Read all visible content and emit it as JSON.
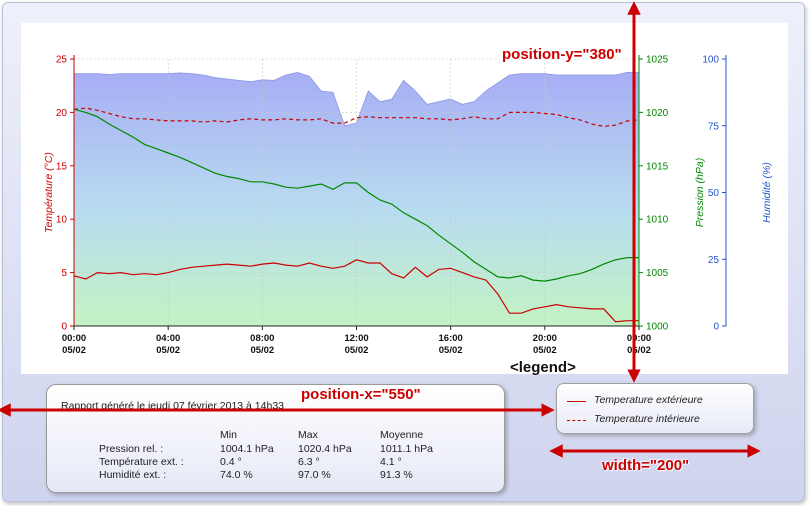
{
  "chart_data": {
    "type": "line",
    "xlabel": "",
    "x_ticks": [
      {
        "time": "00:00",
        "date": "05/02"
      },
      {
        "time": "04:00",
        "date": "05/02"
      },
      {
        "time": "08:00",
        "date": "05/02"
      },
      {
        "time": "12:00",
        "date": "05/02"
      },
      {
        "time": "16:00",
        "date": "05/02"
      },
      {
        "time": "20:00",
        "date": "05/02"
      },
      {
        "time": "00:00",
        "date": "06/02"
      }
    ],
    "xlim": [
      "05/02 00:00",
      "06/02 00:00"
    ],
    "axes": {
      "temperature": {
        "label": "Température (°C)",
        "ylim": [
          0,
          25
        ],
        "ticks": [
          "0",
          "5",
          "10",
          "15",
          "20",
          "25"
        ],
        "color": "#cc0000"
      },
      "pressure": {
        "label": "Pression (hPa)",
        "ylim": [
          1000,
          1025
        ],
        "ticks": [
          "1000",
          "1005",
          "1010",
          "1015",
          "1020",
          "1025"
        ],
        "color": "#008800"
      },
      "humidity": {
        "label": "Humidité (%)",
        "ylim": [
          0,
          100
        ],
        "ticks": [
          "0",
          "25",
          "50",
          "75",
          "100"
        ],
        "color": "#2255cc"
      }
    },
    "x_hours": [
      0,
      0.5,
      1,
      1.5,
      2,
      2.5,
      3,
      3.5,
      4,
      4.5,
      5,
      5.5,
      6,
      6.5,
      7,
      7.5,
      8,
      8.5,
      9,
      9.5,
      10,
      10.5,
      11,
      11.5,
      12,
      12.5,
      13,
      13.5,
      14,
      14.5,
      15,
      15.5,
      16,
      16.5,
      17,
      17.5,
      18,
      18.5,
      19,
      19.5,
      20,
      20.5,
      21,
      21.5,
      22,
      22.5,
      23,
      23.5,
      24
    ],
    "series": [
      {
        "name": "Temperature extérieure",
        "axis": "temperature",
        "style": "solid",
        "color": "#cc0000",
        "values": [
          4.7,
          4.4,
          5.0,
          4.9,
          5.0,
          4.8,
          4.9,
          4.8,
          5.0,
          5.3,
          5.5,
          5.6,
          5.7,
          5.8,
          5.7,
          5.6,
          5.8,
          5.9,
          5.7,
          5.6,
          5.9,
          5.6,
          5.4,
          5.6,
          6.2,
          5.9,
          5.9,
          4.9,
          4.5,
          5.5,
          4.6,
          5.3,
          5.4,
          5.0,
          4.6,
          4.3,
          3.0,
          1.2,
          1.2,
          1.6,
          1.8,
          2.0,
          1.8,
          1.7,
          1.6,
          1.6,
          0.4,
          0.5,
          0.5
        ]
      },
      {
        "name": "Temperature intérieure",
        "axis": "temperature",
        "style": "dashed",
        "color": "#cc0000",
        "values": [
          20.3,
          20.4,
          20.2,
          19.9,
          19.6,
          19.4,
          19.4,
          19.3,
          19.2,
          19.2,
          19.2,
          19.1,
          19.2,
          19.1,
          19.3,
          19.4,
          19.3,
          19.3,
          19.4,
          19.3,
          19.3,
          19.4,
          19.0,
          19.0,
          19.5,
          19.6,
          19.5,
          19.5,
          19.5,
          19.5,
          19.4,
          19.4,
          19.3,
          19.4,
          19.6,
          19.4,
          19.4,
          20.0,
          20.0,
          20.0,
          19.9,
          19.8,
          19.5,
          19.3,
          18.9,
          18.7,
          18.8,
          19.2,
          19.3
        ]
      },
      {
        "name": "Pression rel.",
        "axis": "pressure",
        "style": "solid",
        "color": "#008800",
        "values": [
          1020.3,
          1020.0,
          1019.6,
          1018.9,
          1018.3,
          1017.7,
          1017.0,
          1016.6,
          1016.2,
          1015.8,
          1015.3,
          1014.8,
          1014.3,
          1014.0,
          1013.8,
          1013.5,
          1013.5,
          1013.3,
          1013.0,
          1012.9,
          1013.1,
          1013.3,
          1012.8,
          1013.4,
          1013.4,
          1012.5,
          1011.8,
          1011.4,
          1010.6,
          1010.0,
          1009.4,
          1008.5,
          1007.7,
          1006.9,
          1006.0,
          1005.3,
          1004.6,
          1004.5,
          1004.7,
          1004.3,
          1004.2,
          1004.4,
          1004.7,
          1004.9,
          1005.3,
          1005.8,
          1006.2,
          1006.4,
          1006.4
        ]
      },
      {
        "name": "Humidité ext.",
        "axis": "humidity",
        "style": "area",
        "color": "#9da6f0",
        "values": [
          94.5,
          94.5,
          94.5,
          94.2,
          94.5,
          94.5,
          94.5,
          94.5,
          94.5,
          94.8,
          94.5,
          94.0,
          93.0,
          92.5,
          92.0,
          91.5,
          92.2,
          92.0,
          94.0,
          95.0,
          93.5,
          88.0,
          87.5,
          75.0,
          76.0,
          88.0,
          84.0,
          85.0,
          92.0,
          88.0,
          83.0,
          84.0,
          85.0,
          83.0,
          84.0,
          88.0,
          91.0,
          94.0,
          94.5,
          94.5,
          94.5,
          94.0,
          94.0,
          94.0,
          94.0,
          94.0,
          94.0,
          95.0,
          95.0
        ]
      }
    ],
    "grid": true,
    "legend": "below-right"
  },
  "report": {
    "title": "Rapport généré le jeudi 07 février 2013 à 14h33",
    "columns": [
      "Min",
      "Max",
      "Moyenne"
    ],
    "rows": [
      {
        "label": "Pression rel. :",
        "min": "1004.1 hPa",
        "max": "1020.4 hPa",
        "avg": "1011.1 hPa"
      },
      {
        "label": "Température ext. :",
        "min": "0.4 °",
        "max": "6.3 °",
        "avg": "4.1 °"
      },
      {
        "label": "Humidité ext. :",
        "min": "74.0 %",
        "max": "97.0 %",
        "avg": "91.3 %"
      }
    ]
  },
  "legend": {
    "items": [
      {
        "label": "Temperature extérieure",
        "style": "solid"
      },
      {
        "label": "Temperature intérieure",
        "style": "dashed"
      }
    ]
  },
  "annotations": {
    "position_y": "position-y=\"380\"",
    "position_x": "position-x=\"550\"",
    "width": "width=\"200\"",
    "legend_tag": "<legend>",
    "color": "#cc0000"
  }
}
